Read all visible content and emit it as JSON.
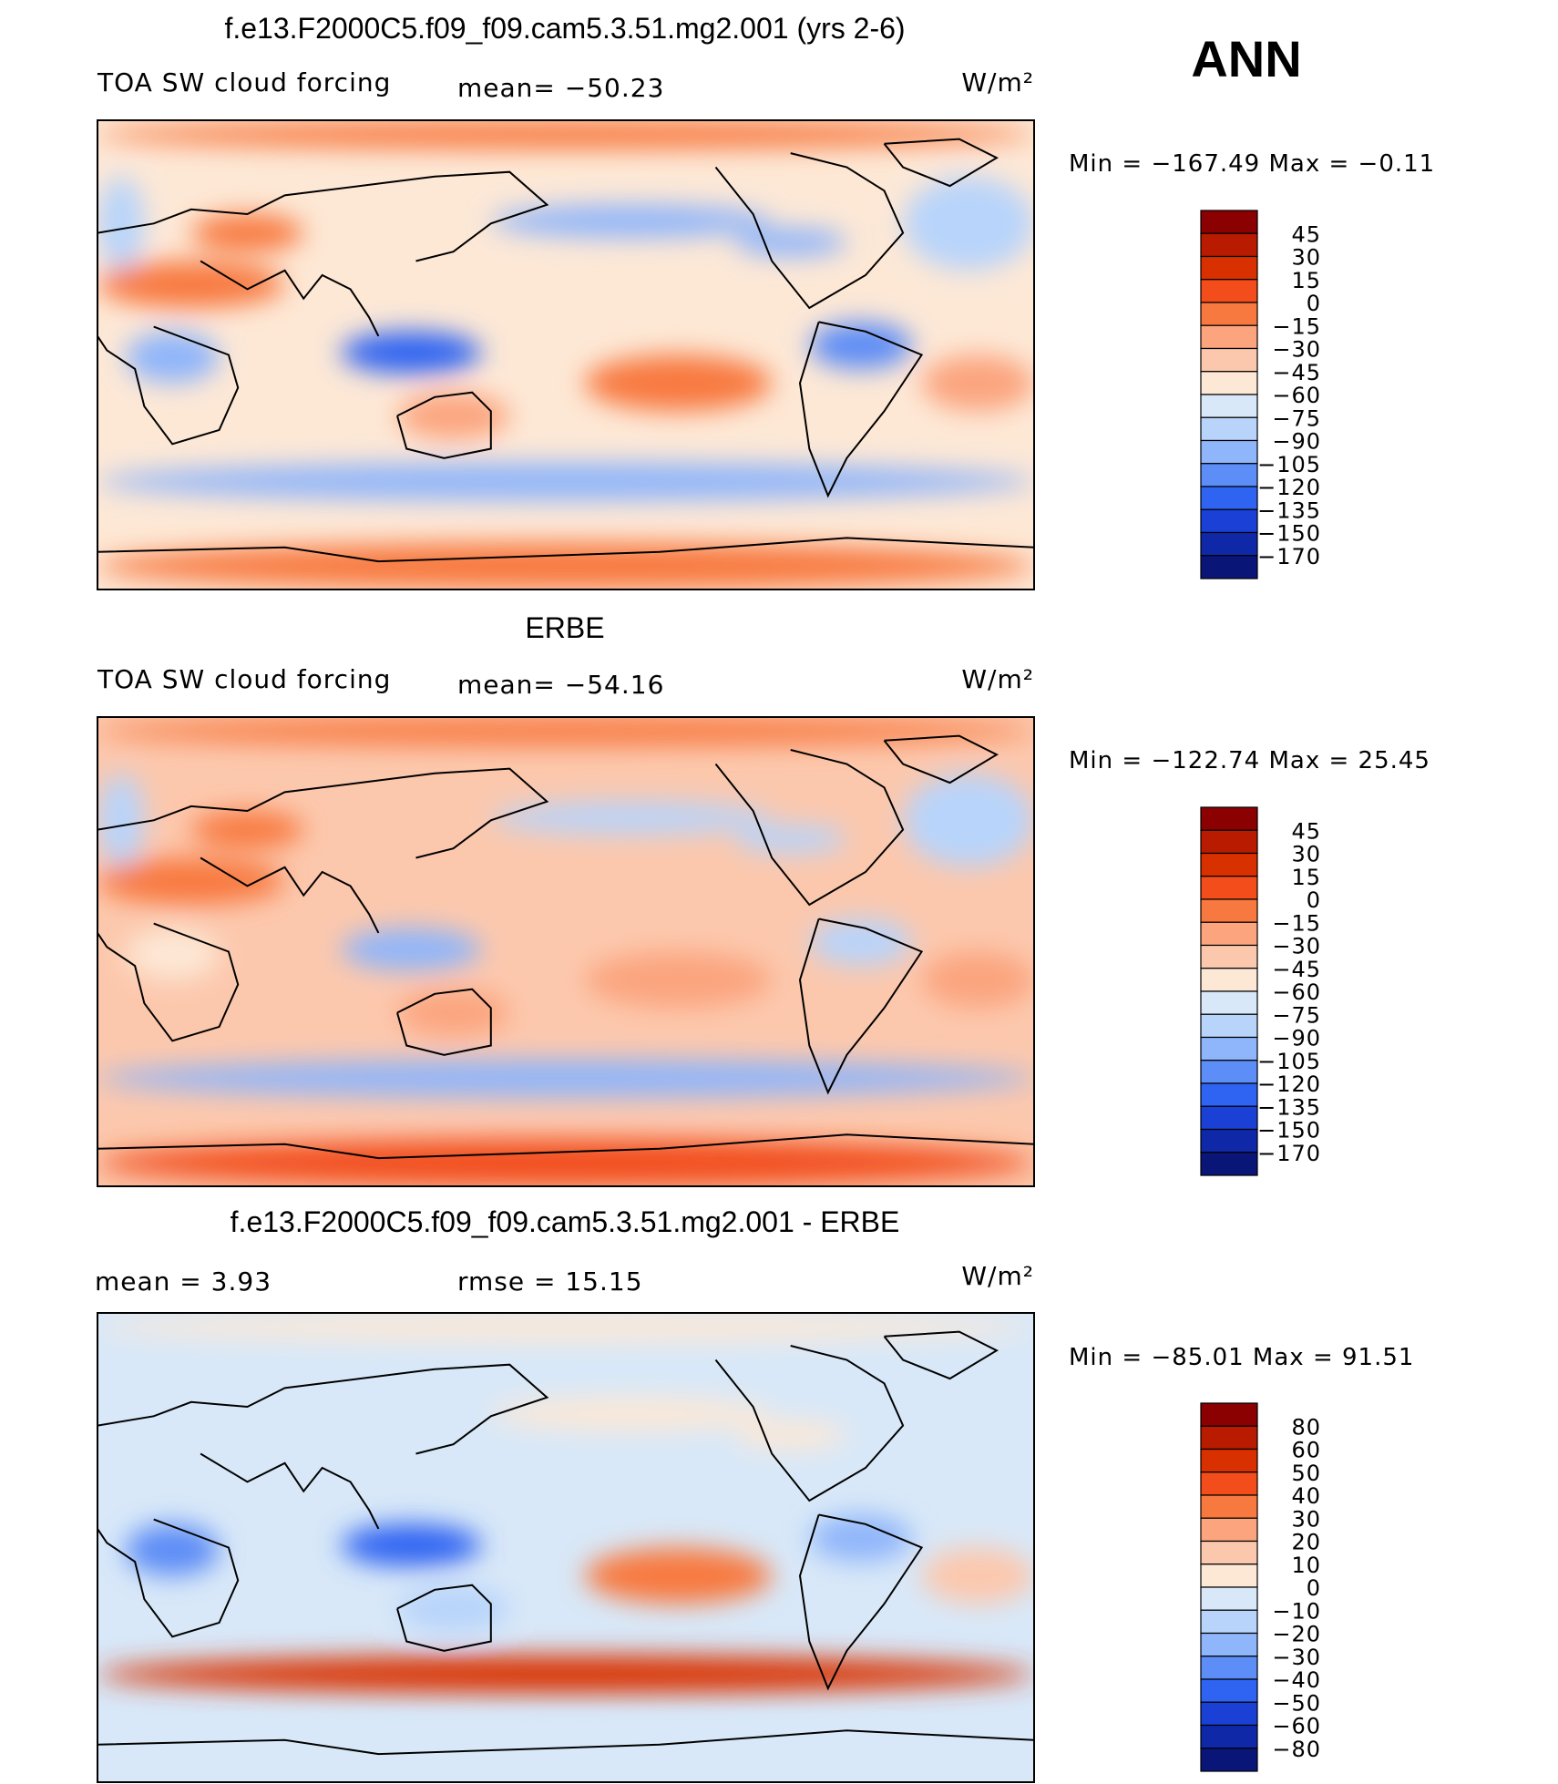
{
  "season_label": "ANN",
  "units": "W/m²",
  "chart_data": [
    {
      "type": "heatmap",
      "kind": "filled-contour-map",
      "title": "f.e13.F2000C5.f09_f09.cam5.3.51.mg2.001 (yrs 2-6)",
      "subtitle": "TOA SW cloud forcing",
      "mean_text": "mean= −50.23",
      "units": "W/m²",
      "minmax_text": "Min  =  −167.49  Max  =   −0.11",
      "colorbar_levels": [
        "45",
        "30",
        "15",
        "0",
        "−15",
        "−30",
        "−45",
        "−60",
        "−75",
        "−90",
        "−105",
        "−120",
        "−135",
        "−150",
        "−170"
      ],
      "colorbar_colors": [
        "#8b0000",
        "#b81b00",
        "#d93000",
        "#f24d1a",
        "#f8793f",
        "#fba47e",
        "#fcc8ad",
        "#fde8d6",
        "#d8e8f8",
        "#b8d4fb",
        "#8fb5fa",
        "#5d8df6",
        "#2f64f2",
        "#1a40d6",
        "#0f28a8",
        "#0a1578"
      ],
      "field": {
        "background": "#fde8d6",
        "blobs": [
          {
            "region": "north-polar-band",
            "color": "#f8793f"
          },
          {
            "region": "south-polar-band",
            "color": "#f8793f"
          },
          {
            "region": "north-pacific-storm-track",
            "color": "#8fb5fa"
          },
          {
            "region": "north-atlantic",
            "color": "#b8d4fb"
          },
          {
            "region": "sahara-arabia",
            "color": "#f8793f"
          },
          {
            "region": "central-africa",
            "color": "#8fb5fa"
          },
          {
            "region": "maritime-continent",
            "color": "#2f64f2"
          },
          {
            "region": "southern-ocean",
            "color": "#8fb5fa"
          },
          {
            "region": "southeast-pacific-stratocumulus",
            "color": "#f8793f"
          },
          {
            "region": "south-atlantic",
            "color": "#fba47e"
          },
          {
            "region": "amazon",
            "color": "#5d8df6"
          },
          {
            "region": "australia",
            "color": "#fba47e"
          }
        ]
      }
    },
    {
      "type": "heatmap",
      "kind": "filled-contour-map",
      "title": "ERBE",
      "subtitle": "TOA SW cloud forcing",
      "mean_text": "mean= −54.16",
      "units": "W/m²",
      "minmax_text": "Min  =  −122.74  Max  =   25.45",
      "colorbar_levels": [
        "45",
        "30",
        "15",
        "0",
        "−15",
        "−30",
        "−45",
        "−60",
        "−75",
        "−90",
        "−105",
        "−120",
        "−135",
        "−150",
        "−170"
      ],
      "colorbar_colors": [
        "#8b0000",
        "#b81b00",
        "#d93000",
        "#f24d1a",
        "#f8793f",
        "#fba47e",
        "#fcc8ad",
        "#fde8d6",
        "#d8e8f8",
        "#b8d4fb",
        "#8fb5fa",
        "#5d8df6",
        "#2f64f2",
        "#1a40d6",
        "#0f28a8",
        "#0a1578"
      ],
      "field": {
        "background": "#fcc8ad",
        "blobs": [
          {
            "region": "north-polar-band",
            "color": "#f8793f"
          },
          {
            "region": "south-polar-band",
            "color": "#f24d1a"
          },
          {
            "region": "north-pacific-storm-track",
            "color": "#b8d4fb"
          },
          {
            "region": "north-atlantic",
            "color": "#b8d4fb"
          },
          {
            "region": "sahara-arabia",
            "color": "#f8793f"
          },
          {
            "region": "central-africa",
            "color": "#fde8d6"
          },
          {
            "region": "maritime-continent",
            "color": "#8fb5fa"
          },
          {
            "region": "southern-ocean",
            "color": "#8fb5fa"
          },
          {
            "region": "southeast-pacific-stratocumulus",
            "color": "#fba47e"
          },
          {
            "region": "south-atlantic",
            "color": "#fba47e"
          },
          {
            "region": "amazon",
            "color": "#b8d4fb"
          },
          {
            "region": "australia",
            "color": "#fba47e"
          }
        ]
      }
    },
    {
      "type": "heatmap",
      "kind": "filled-contour-map",
      "title": "f.e13.F2000C5.f09_f09.cam5.3.51.mg2.001 - ERBE",
      "mean_text": "mean  =     3.93",
      "rmse_text": "rmse  =     15.15",
      "units": "W/m²",
      "minmax_text": "Min  =  −85.01  Max  =   91.51",
      "colorbar_levels": [
        "80",
        "60",
        "50",
        "40",
        "30",
        "20",
        "10",
        "0",
        "−10",
        "−20",
        "−30",
        "−40",
        "−50",
        "−60",
        "−80"
      ],
      "colorbar_colors": [
        "#8b0000",
        "#b81b00",
        "#d93000",
        "#f24d1a",
        "#f8793f",
        "#fba47e",
        "#fcc8ad",
        "#fde8d6",
        "#d8e8f8",
        "#b8d4fb",
        "#8fb5fa",
        "#5d8df6",
        "#2f64f2",
        "#1a40d6",
        "#0f28a8",
        "#0a1578"
      ],
      "field": {
        "background": "#d8e8f8",
        "blobs": [
          {
            "region": "north-polar-band",
            "color": "#fde8d6"
          },
          {
            "region": "south-polar-band",
            "color": "#d8e8f8"
          },
          {
            "region": "southern-ocean",
            "color": "#d93000"
          },
          {
            "region": "central-africa",
            "color": "#5d8df6"
          },
          {
            "region": "maritime-continent",
            "color": "#2f64f2"
          },
          {
            "region": "southeast-pacific-stratocumulus",
            "color": "#f8793f"
          },
          {
            "region": "amazon",
            "color": "#8fb5fa"
          },
          {
            "region": "north-pacific-storm-track",
            "color": "#fde8d6"
          },
          {
            "region": "south-atlantic",
            "color": "#fcc8ad"
          },
          {
            "region": "australia",
            "color": "#b8d4fb"
          }
        ]
      }
    }
  ]
}
